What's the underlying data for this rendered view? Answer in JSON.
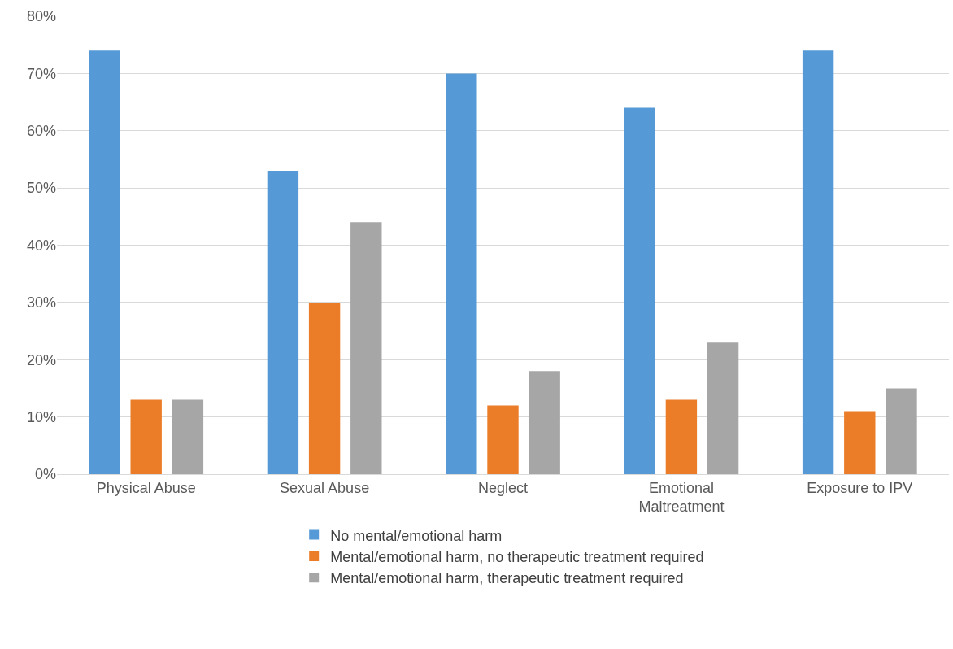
{
  "chart_data": {
    "type": "bar",
    "categories": [
      "Physical Abuse",
      "Sexual Abuse",
      "Neglect",
      "Emotional Maltreatment",
      "Exposure to IPV"
    ],
    "series": [
      {
        "name": "No mental/emotional harm",
        "color": "#5599d6",
        "values": [
          74,
          53,
          70,
          64,
          74
        ]
      },
      {
        "name": "Mental/emotional harm, no therapeutic treatment required",
        "color": "#ec7d28",
        "values": [
          13,
          30,
          12,
          13,
          11
        ]
      },
      {
        "name": "Mental/emotional harm, therapeutic treatment required",
        "color": "#a6a6a6",
        "values": [
          13,
          44,
          18,
          23,
          15
        ]
      }
    ],
    "ylim": [
      0,
      80
    ],
    "yticks": [
      {
        "value": 0,
        "label": "0%"
      },
      {
        "value": 10,
        "label": "10%"
      },
      {
        "value": 20,
        "label": "20%"
      },
      {
        "value": 30,
        "label": "30%"
      },
      {
        "value": 40,
        "label": "40%"
      },
      {
        "value": 50,
        "label": "50%"
      },
      {
        "value": 60,
        "label": "60%"
      },
      {
        "value": 70,
        "label": "70%"
      },
      {
        "value": 80,
        "label": "80%"
      }
    ],
    "grid": "y",
    "legend": "bottom"
  }
}
